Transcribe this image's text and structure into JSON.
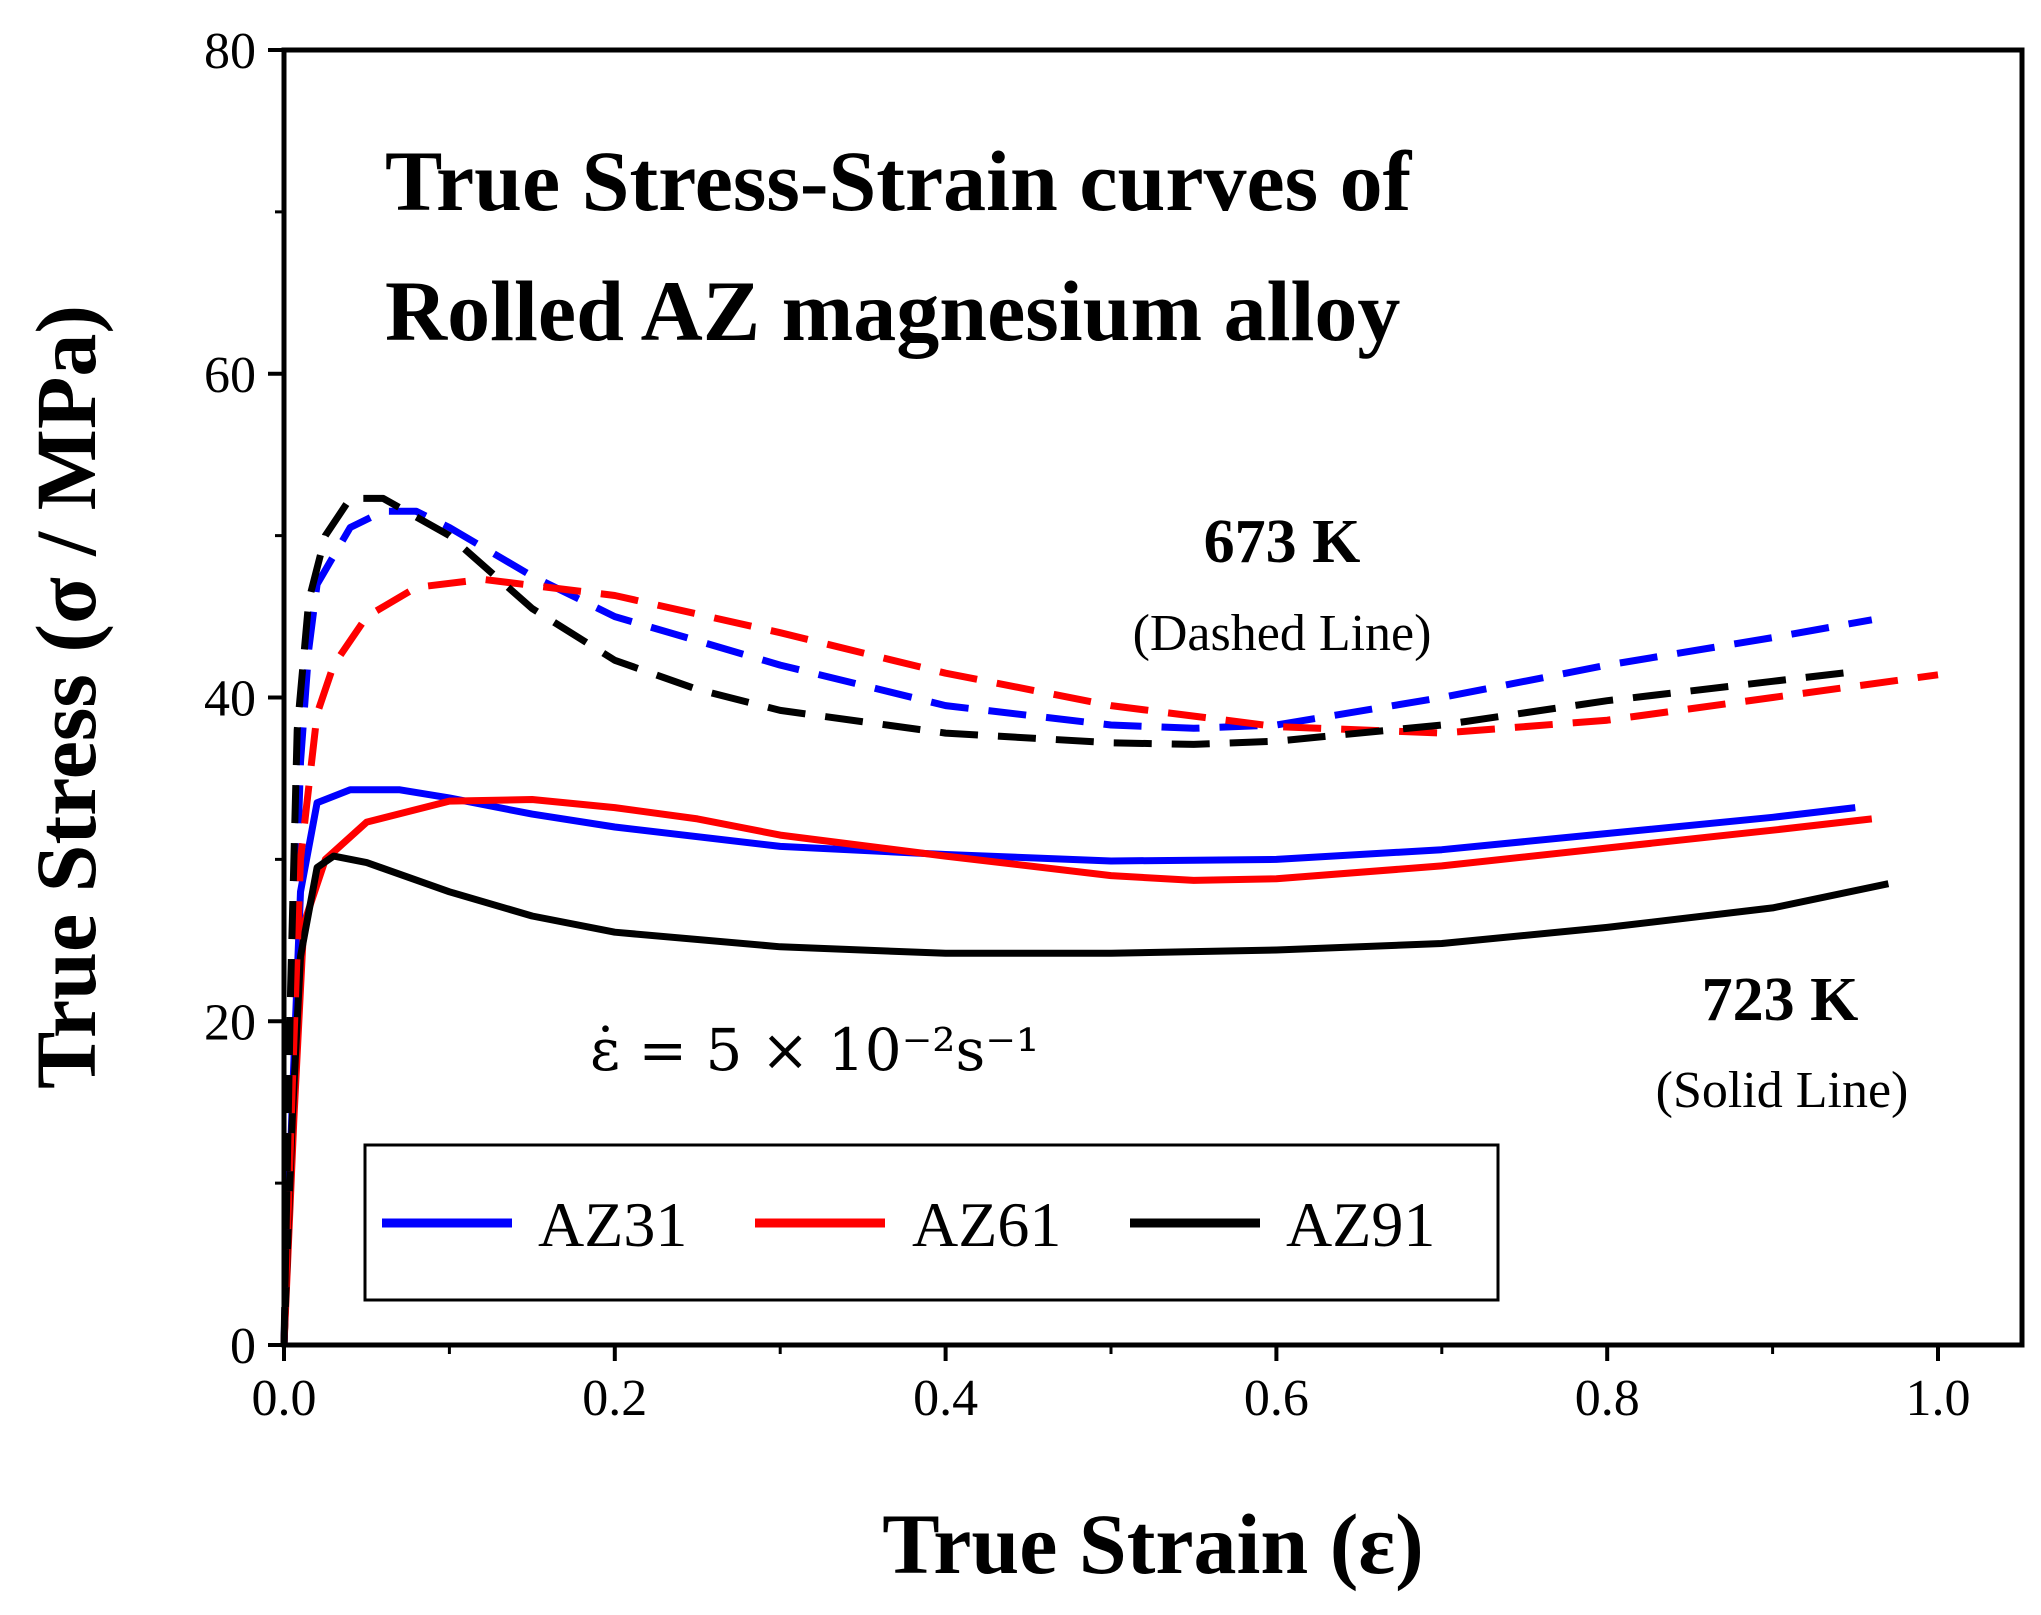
{
  "chart_data": {
    "type": "line",
    "title_lines": [
      "True Stress-Strain curves of",
      "Rolled AZ magnesium alloy"
    ],
    "xlabel": "True Strain (ε)",
    "ylabel": "True Stress (σ / MPa)",
    "xlim": [
      0.0,
      1.0
    ],
    "ylim": [
      0,
      80
    ],
    "xticks": [
      "0.0",
      "0.2",
      "0.4",
      "0.6",
      "0.8",
      "1.0"
    ],
    "xtick_values": [
      0.0,
      0.2,
      0.4,
      0.6,
      0.8,
      1.0
    ],
    "yticks": [
      "0",
      "20",
      "40",
      "60",
      "80"
    ],
    "ytick_values": [
      0,
      20,
      40,
      60,
      80
    ],
    "legend_location": "bottom-left",
    "annotations": {
      "temp_673": "673 K",
      "dashed_note": "(Dashed Line)",
      "temp_723": "723 K",
      "solid_note": "(Solid Line)",
      "strain_rate": "ε̇ = 5 × 10⁻²s⁻¹"
    },
    "series": [
      {
        "name": "AZ31",
        "temperature": "723 K",
        "style": "solid",
        "color": "#0000ff",
        "points": [
          [
            0.0,
            0
          ],
          [
            0.005,
            15
          ],
          [
            0.01,
            28
          ],
          [
            0.02,
            33.5
          ],
          [
            0.04,
            34.3
          ],
          [
            0.07,
            34.3
          ],
          [
            0.1,
            33.8
          ],
          [
            0.15,
            32.8
          ],
          [
            0.2,
            32
          ],
          [
            0.3,
            30.8
          ],
          [
            0.4,
            30.3
          ],
          [
            0.5,
            29.9
          ],
          [
            0.6,
            30
          ],
          [
            0.7,
            30.6
          ],
          [
            0.8,
            31.6
          ],
          [
            0.9,
            32.6
          ],
          [
            0.95,
            33.2
          ]
        ]
      },
      {
        "name": "AZ61",
        "temperature": "723 K",
        "style": "solid",
        "color": "#ff0000",
        "points": [
          [
            0.0,
            0
          ],
          [
            0.006,
            14
          ],
          [
            0.012,
            26
          ],
          [
            0.025,
            30
          ],
          [
            0.05,
            32.3
          ],
          [
            0.1,
            33.6
          ],
          [
            0.15,
            33.7
          ],
          [
            0.2,
            33.2
          ],
          [
            0.25,
            32.5
          ],
          [
            0.3,
            31.5
          ],
          [
            0.4,
            30.2
          ],
          [
            0.5,
            29
          ],
          [
            0.55,
            28.7
          ],
          [
            0.6,
            28.8
          ],
          [
            0.7,
            29.6
          ],
          [
            0.8,
            30.7
          ],
          [
            0.9,
            31.8
          ],
          [
            0.96,
            32.5
          ]
        ]
      },
      {
        "name": "AZ91",
        "temperature": "723 K",
        "style": "solid",
        "color": "#000000",
        "points": [
          [
            0.0,
            0
          ],
          [
            0.005,
            14
          ],
          [
            0.01,
            24
          ],
          [
            0.02,
            29.5
          ],
          [
            0.03,
            30.2
          ],
          [
            0.05,
            29.8
          ],
          [
            0.1,
            28
          ],
          [
            0.15,
            26.5
          ],
          [
            0.2,
            25.5
          ],
          [
            0.3,
            24.6
          ],
          [
            0.4,
            24.2
          ],
          [
            0.5,
            24.2
          ],
          [
            0.6,
            24.4
          ],
          [
            0.7,
            24.8
          ],
          [
            0.8,
            25.8
          ],
          [
            0.9,
            27
          ],
          [
            0.97,
            28.5
          ]
        ]
      },
      {
        "name": "AZ31",
        "temperature": "673 K",
        "style": "dashed",
        "color": "#0000ff",
        "points": [
          [
            0.0,
            0
          ],
          [
            0.005,
            20
          ],
          [
            0.01,
            36
          ],
          [
            0.015,
            43
          ],
          [
            0.02,
            47
          ],
          [
            0.04,
            50.5
          ],
          [
            0.06,
            51.5
          ],
          [
            0.08,
            51.5
          ],
          [
            0.1,
            50.5
          ],
          [
            0.15,
            47.5
          ],
          [
            0.2,
            45
          ],
          [
            0.3,
            42
          ],
          [
            0.4,
            39.5
          ],
          [
            0.5,
            38.3
          ],
          [
            0.55,
            38.1
          ],
          [
            0.6,
            38.3
          ],
          [
            0.7,
            40
          ],
          [
            0.8,
            42
          ],
          [
            0.9,
            43.7
          ],
          [
            0.96,
            44.8
          ]
        ]
      },
      {
        "name": "AZ61",
        "temperature": "673 K",
        "style": "dashed",
        "color": "#ff0000",
        "points": [
          [
            0.0,
            0
          ],
          [
            0.005,
            16
          ],
          [
            0.01,
            30
          ],
          [
            0.02,
            39
          ],
          [
            0.03,
            42
          ],
          [
            0.05,
            45
          ],
          [
            0.08,
            46.8
          ],
          [
            0.12,
            47.3
          ],
          [
            0.2,
            46.3
          ],
          [
            0.3,
            44
          ],
          [
            0.4,
            41.5
          ],
          [
            0.5,
            39.5
          ],
          [
            0.6,
            38.2
          ],
          [
            0.7,
            37.8
          ],
          [
            0.8,
            38.6
          ],
          [
            0.9,
            40
          ],
          [
            1.0,
            41.4
          ]
        ]
      },
      {
        "name": "AZ91",
        "temperature": "673 K",
        "style": "dashed",
        "color": "#000000",
        "points": [
          [
            0.0,
            0
          ],
          [
            0.004,
            22
          ],
          [
            0.008,
            38
          ],
          [
            0.015,
            46
          ],
          [
            0.025,
            50
          ],
          [
            0.04,
            52.3
          ],
          [
            0.06,
            52.3
          ],
          [
            0.1,
            50
          ],
          [
            0.15,
            45.5
          ],
          [
            0.2,
            42.3
          ],
          [
            0.25,
            40.5
          ],
          [
            0.3,
            39.2
          ],
          [
            0.4,
            37.8
          ],
          [
            0.5,
            37.2
          ],
          [
            0.55,
            37.1
          ],
          [
            0.6,
            37.3
          ],
          [
            0.7,
            38.3
          ],
          [
            0.8,
            39.8
          ],
          [
            0.9,
            41
          ],
          [
            0.95,
            41.6
          ]
        ]
      }
    ],
    "legend": [
      {
        "name": "AZ31",
        "color": "#0000ff"
      },
      {
        "name": "AZ61",
        "color": "#ff0000"
      },
      {
        "name": "AZ91",
        "color": "#000000"
      }
    ]
  }
}
